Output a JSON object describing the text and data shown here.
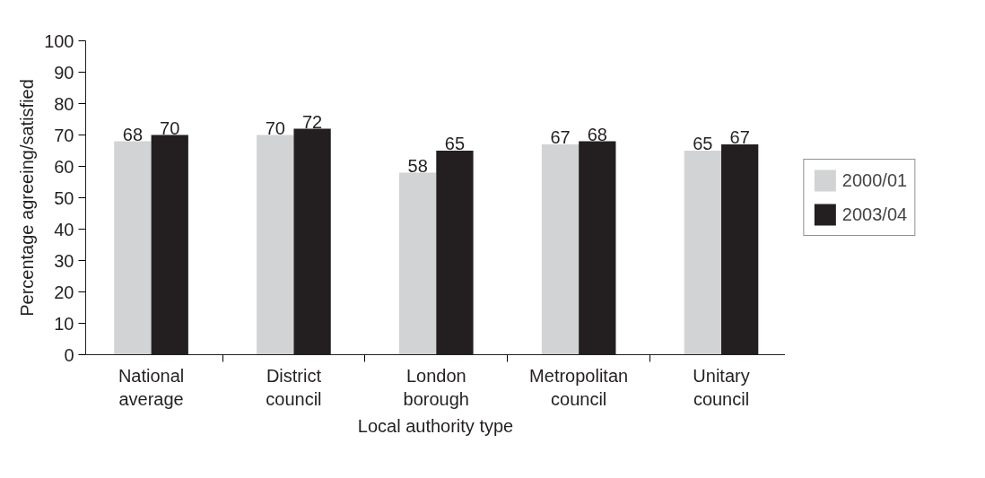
{
  "chart_data": {
    "type": "bar",
    "xlabel": "Local authority type",
    "ylabel": "Percentage agreeing/satisfied",
    "categories": [
      "National average",
      "District council",
      "London borough",
      "Metropolitan council",
      "Unitary council"
    ],
    "series": [
      {
        "name": "2000/01",
        "color": "#d1d3d4",
        "values": [
          68,
          70,
          58,
          67,
          65
        ]
      },
      {
        "name": "2003/04",
        "color": "#231f20",
        "values": [
          70,
          72,
          65,
          68,
          67
        ]
      }
    ],
    "ylim": [
      0,
      100
    ],
    "yticks": [
      0,
      10,
      20,
      30,
      40,
      50,
      60,
      70,
      80,
      90,
      100
    ],
    "grid": false,
    "legend": "right",
    "data_labels": true
  }
}
